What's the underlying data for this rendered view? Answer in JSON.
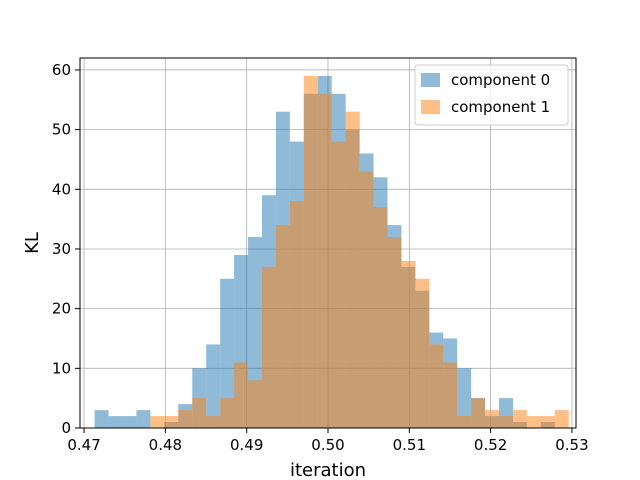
{
  "chart_data": {
    "type": "histogram",
    "xlabel": "iteration",
    "ylabel": "KL",
    "xlim": [
      0.4695,
      0.5305
    ],
    "ylim": [
      0,
      62
    ],
    "xticks": [
      0.47,
      0.48,
      0.49,
      0.5,
      0.51,
      0.52,
      0.53
    ],
    "xtick_labels": [
      "0.47",
      "0.48",
      "0.49",
      "0.50",
      "0.51",
      "0.52",
      "0.53"
    ],
    "yticks": [
      0,
      10,
      20,
      30,
      40,
      50,
      60
    ],
    "ytick_labels": [
      "0",
      "10",
      "20",
      "30",
      "40",
      "50",
      "60"
    ],
    "grid": true,
    "legend_position": "top-right",
    "series": [
      {
        "name": "component 0",
        "color": "#1f77b4",
        "alpha": 0.5,
        "bin_start": 0.4713,
        "bin_width": 0.001715,
        "counts": [
          3,
          2,
          2,
          3,
          0,
          1,
          4,
          10,
          14,
          25,
          29,
          32,
          39,
          53,
          48,
          56,
          59,
          56,
          50,
          46,
          42,
          34,
          27,
          23,
          16,
          15,
          10,
          5,
          2,
          5,
          1,
          0,
          1,
          0
        ]
      },
      {
        "name": "component 1",
        "color": "#ff7f0e",
        "alpha": 0.5,
        "bin_start": 0.4713,
        "bin_width": 0.001715,
        "counts": [
          0,
          0,
          0,
          0,
          2,
          2,
          3,
          5,
          2,
          5,
          11,
          8,
          27,
          34,
          38,
          59,
          56,
          48,
          53,
          43,
          37,
          32,
          28,
          25,
          14,
          11,
          2,
          5,
          3,
          2,
          3,
          2,
          2,
          3
        ]
      }
    ]
  }
}
